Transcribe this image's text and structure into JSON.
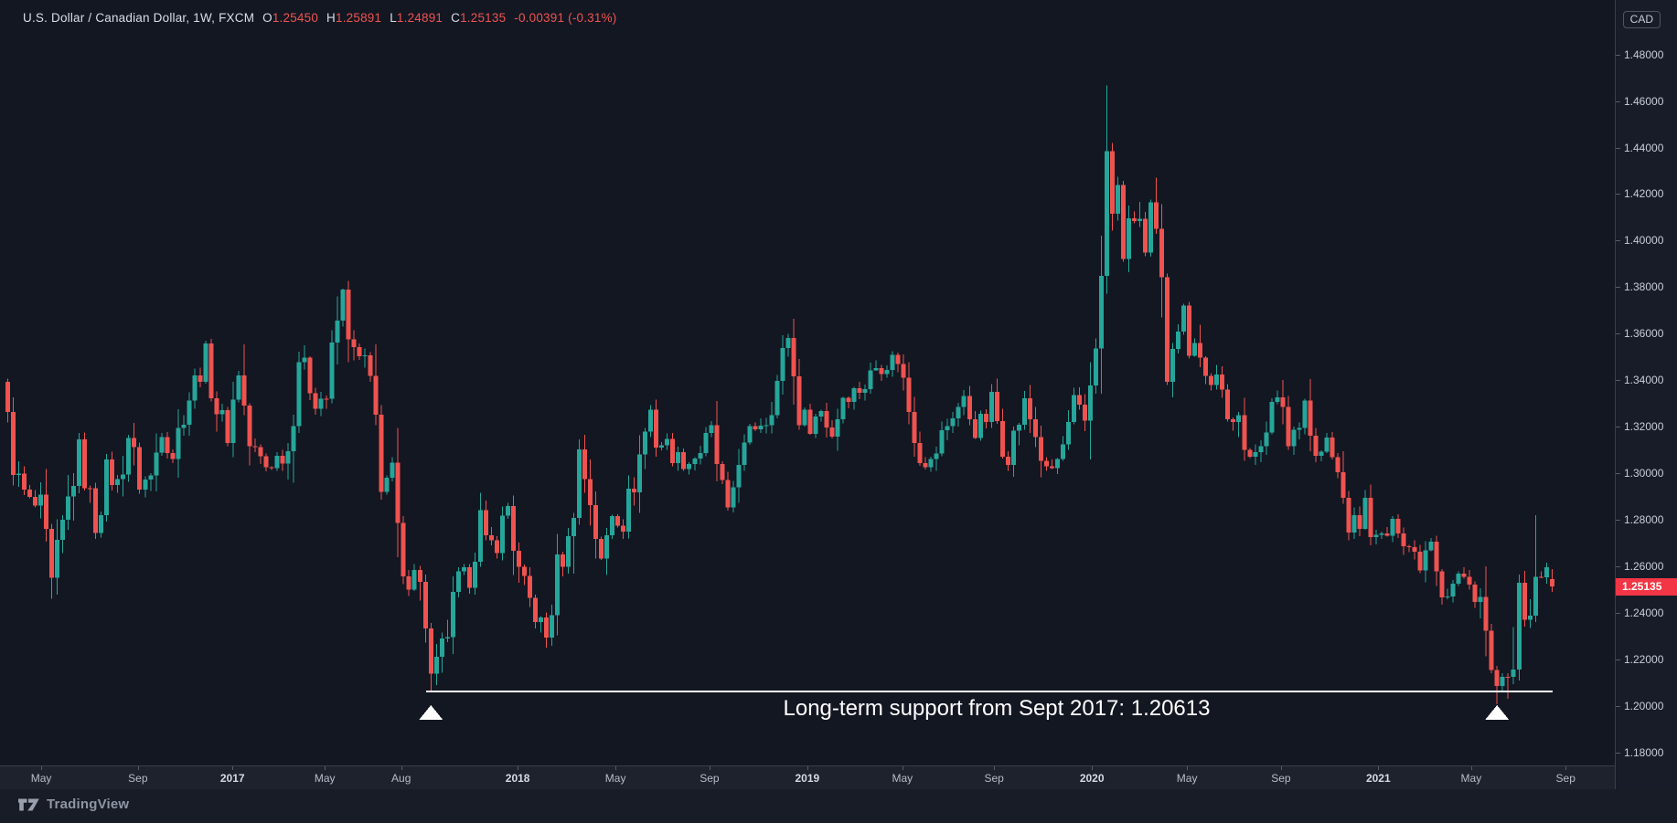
{
  "header": {
    "symbol": "U.S. Dollar / Canadian Dollar, 1W, FXCM",
    "ohlc": [
      {
        "label": "O",
        "value": "1.25450"
      },
      {
        "label": "H",
        "value": "1.25891"
      },
      {
        "label": "L",
        "value": "1.24891"
      },
      {
        "label": "C",
        "value": "1.25135"
      }
    ],
    "change": "-0.00391 (-0.31%)",
    "value_color": "#ef5350"
  },
  "currency_badge": "CAD",
  "price_axis": {
    "ticks": [
      "1.48000",
      "1.46000",
      "1.44000",
      "1.42000",
      "1.40000",
      "1.38000",
      "1.36000",
      "1.34000",
      "1.32000",
      "1.30000",
      "1.28000",
      "1.26000",
      "1.24000",
      "1.22000",
      "1.20000",
      "1.18000"
    ],
    "last_price_label": "1.25135",
    "last_price": 1.25135
  },
  "time_axis": {
    "ticks": [
      {
        "label": "May",
        "week": 6.5
      },
      {
        "label": "Sep",
        "week": 24.1
      },
      {
        "label": "2017",
        "week": 41.3
      },
      {
        "label": "May",
        "week": 58.1
      },
      {
        "label": "Aug",
        "week": 72.0
      },
      {
        "label": "2018",
        "week": 93.2
      },
      {
        "label": "May",
        "week": 111.0
      },
      {
        "label": "Sep",
        "week": 128.1
      },
      {
        "label": "2019",
        "week": 145.9
      },
      {
        "label": "May",
        "week": 163.2
      },
      {
        "label": "Sep",
        "week": 179.9
      },
      {
        "label": "2020",
        "week": 197.7
      },
      {
        "label": "May",
        "week": 215.0
      },
      {
        "label": "Sep",
        "week": 232.1
      },
      {
        "label": "2021",
        "week": 249.8
      },
      {
        "label": "May",
        "week": 266.7
      },
      {
        "label": "Sep",
        "week": 283.9
      }
    ]
  },
  "annotation": {
    "text": "Long-term support from Sept 2017: 1.20613",
    "support_price": 1.20613,
    "line_from_week": 77,
    "line_to_week": 282,
    "marker_weeks": [
      77,
      271
    ],
    "line_color": "#ffffff",
    "marker_color": "#ffffff"
  },
  "footer": {
    "brand": "TradingView"
  },
  "chart_data": {
    "type": "candlestick",
    "title": "U.S. Dollar / Canadian Dollar, 1W, FXCM",
    "pair": "USD/CAD",
    "timeframe": "1W",
    "exchange": "FXCM",
    "weeks": 282,
    "start_date_approx": "2016-03",
    "end_date_approx": "2021-09",
    "ylim": [
      1.17,
      1.5
    ],
    "grid": false,
    "up_color": "#26a69a",
    "down_color": "#ef5350",
    "last_candle": {
      "open": 1.2545,
      "high": 1.25891,
      "low": 1.24891,
      "close": 1.25135
    },
    "anchors": [
      [
        0,
        1.322
      ],
      [
        1,
        1.306
      ],
      [
        2,
        1.296
      ],
      [
        4,
        1.287
      ],
      [
        6,
        1.284
      ],
      [
        8,
        1.252
      ],
      [
        10,
        1.276
      ],
      [
        13,
        1.311
      ],
      [
        16,
        1.277
      ],
      [
        18,
        1.301
      ],
      [
        20,
        1.295
      ],
      [
        22,
        1.316
      ],
      [
        24,
        1.296
      ],
      [
        26,
        1.298
      ],
      [
        28,
        1.32
      ],
      [
        30,
        1.308
      ],
      [
        32,
        1.327
      ],
      [
        34,
        1.339
      ],
      [
        36,
        1.351
      ],
      [
        38,
        1.328
      ],
      [
        40,
        1.317
      ],
      [
        42,
        1.344
      ],
      [
        44,
        1.312
      ],
      [
        47,
        1.303
      ],
      [
        51,
        1.31
      ],
      [
        53,
        1.35
      ],
      [
        56,
        1.332
      ],
      [
        58,
        1.333
      ],
      [
        60,
        1.365
      ],
      [
        61,
        1.377
      ],
      [
        63,
        1.35
      ],
      [
        65,
        1.348
      ],
      [
        67,
        1.322
      ],
      [
        68,
        1.298
      ],
      [
        70,
        1.298
      ],
      [
        72,
        1.25
      ],
      [
        74,
        1.262
      ],
      [
        76,
        1.238
      ],
      [
        77,
        1.211
      ],
      [
        78,
        1.216
      ],
      [
        80,
        1.232
      ],
      [
        82,
        1.253
      ],
      [
        84,
        1.257
      ],
      [
        86,
        1.282
      ],
      [
        87,
        1.268
      ],
      [
        89,
        1.271
      ],
      [
        91,
        1.286
      ],
      [
        93,
        1.256
      ],
      [
        95,
        1.245
      ],
      [
        98,
        1.229
      ],
      [
        100,
        1.259
      ],
      [
        102,
        1.269
      ],
      [
        104,
        1.309
      ],
      [
        106,
        1.289
      ],
      [
        108,
        1.261
      ],
      [
        110,
        1.284
      ],
      [
        112,
        1.279
      ],
      [
        114,
        1.297
      ],
      [
        116,
        1.318
      ],
      [
        117,
        1.327
      ],
      [
        118,
        1.314
      ],
      [
        120,
        1.312
      ],
      [
        122,
        1.306
      ],
      [
        124,
        1.305
      ],
      [
        126,
        1.31
      ],
      [
        128,
        1.317
      ],
      [
        130,
        1.292
      ],
      [
        131,
        1.281
      ],
      [
        133,
        1.308
      ],
      [
        134,
        1.31
      ],
      [
        136,
        1.321
      ],
      [
        138,
        1.324
      ],
      [
        140,
        1.339
      ],
      [
        142,
        1.36
      ],
      [
        143,
        1.341
      ],
      [
        144,
        1.326
      ],
      [
        146,
        1.321
      ],
      [
        148,
        1.327
      ],
      [
        150,
        1.317
      ],
      [
        152,
        1.334
      ],
      [
        154,
        1.335
      ],
      [
        156,
        1.338
      ],
      [
        158,
        1.346
      ],
      [
        160,
        1.348
      ],
      [
        162,
        1.35
      ],
      [
        164,
        1.328
      ],
      [
        166,
        1.309
      ],
      [
        168,
        1.304
      ],
      [
        170,
        1.316
      ],
      [
        172,
        1.326
      ],
      [
        174,
        1.331
      ],
      [
        176,
        1.319
      ],
      [
        178,
        1.324
      ],
      [
        179,
        1.332
      ],
      [
        181,
        1.313
      ],
      [
        182,
        1.308
      ],
      [
        184,
        1.323
      ],
      [
        185,
        1.33
      ],
      [
        187,
        1.317
      ],
      [
        189,
        1.299
      ],
      [
        191,
        1.305
      ],
      [
        193,
        1.318
      ],
      [
        194,
        1.329
      ],
      [
        196,
        1.322
      ],
      [
        197,
        1.34
      ],
      [
        199,
        1.38
      ],
      [
        200,
        1.438
      ],
      [
        201,
        1.41
      ],
      [
        202,
        1.421
      ],
      [
        203,
        1.396
      ],
      [
        204,
        1.404
      ],
      [
        205,
        1.41
      ],
      [
        206,
        1.409
      ],
      [
        207,
        1.393
      ],
      [
        208,
        1.412
      ],
      [
        209,
        1.399
      ],
      [
        210,
        1.378
      ],
      [
        211,
        1.343
      ],
      [
        212,
        1.36
      ],
      [
        214,
        1.369
      ],
      [
        215,
        1.355
      ],
      [
        216,
        1.359
      ],
      [
        218,
        1.341
      ],
      [
        220,
        1.339
      ],
      [
        222,
        1.322
      ],
      [
        224,
        1.331
      ],
      [
        225,
        1.31
      ],
      [
        226,
        1.304
      ],
      [
        228,
        1.316
      ],
      [
        230,
        1.328
      ],
      [
        232,
        1.331
      ],
      [
        233,
        1.312
      ],
      [
        236,
        1.332
      ],
      [
        238,
        1.306
      ],
      [
        240,
        1.313
      ],
      [
        242,
        1.299
      ],
      [
        244,
        1.278
      ],
      [
        246,
        1.279
      ],
      [
        247,
        1.287
      ],
      [
        249,
        1.27
      ],
      [
        251,
        1.274
      ],
      [
        253,
        1.278
      ],
      [
        255,
        1.269
      ],
      [
        257,
        1.262
      ],
      [
        259,
        1.274
      ],
      [
        261,
        1.251
      ],
      [
        262,
        1.249
      ],
      [
        264,
        1.256
      ],
      [
        266,
        1.251
      ],
      [
        268,
        1.247
      ],
      [
        269,
        1.229
      ],
      [
        270,
        1.213
      ],
      [
        271,
        1.2075
      ],
      [
        272,
        1.209
      ],
      [
        273,
        1.2065
      ],
      [
        274,
        1.225
      ],
      [
        275,
        1.247
      ],
      [
        276,
        1.236
      ],
      [
        277,
        1.232
      ],
      [
        278,
        1.258
      ],
      [
        279,
        1.252
      ],
      [
        280,
        1.258
      ],
      [
        281,
        1.25135
      ]
    ],
    "overrides": {
      "high": {
        "61": 1.3793,
        "86": 1.2917,
        "200": 1.4668,
        "201": 1.442,
        "278": 1.282
      },
      "low": {
        "8": 1.2461,
        "77": 1.2061,
        "98": 1.2251,
        "271": 1.2007,
        "273": 1.203
      }
    }
  },
  "colors": {
    "background": "#131722",
    "axis_strip": "#1e222d",
    "support_line": "#ffffff",
    "badge_bg": "#f23645"
  }
}
